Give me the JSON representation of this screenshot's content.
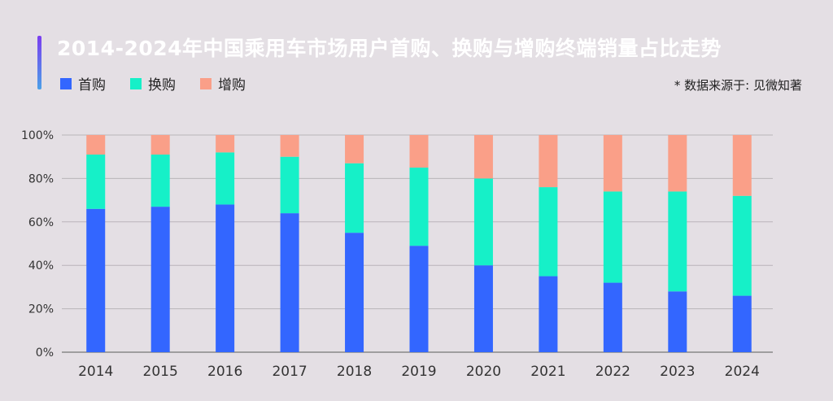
{
  "title": "2014-2024年中国乘用车市场用户首购、换购与增购终端销量占比走势",
  "source": "* 数据来源于: 见微知著",
  "colors": {
    "首购": "#3366ff",
    "换购": "#16f0c8",
    "增购": "#fa9f88"
  },
  "chart_data": {
    "type": "bar",
    "stacked": true,
    "title": "2014-2024年中国乘用车市场用户首购、换购与增购终端销量占比走势",
    "categories": [
      "2014",
      "2015",
      "2016",
      "2017",
      "2018",
      "2019",
      "2020",
      "2021",
      "2022",
      "2023",
      "2024"
    ],
    "series": [
      {
        "name": "首购",
        "values": [
          66,
          67,
          68,
          64,
          55,
          49,
          40,
          35,
          32,
          28,
          26
        ]
      },
      {
        "name": "换购",
        "values": [
          25,
          24,
          24,
          26,
          32,
          36,
          40,
          41,
          42,
          46,
          46
        ]
      },
      {
        "name": "增购",
        "values": [
          9,
          9,
          8,
          10,
          13,
          15,
          20,
          24,
          26,
          26,
          28
        ]
      }
    ],
    "ylim": [
      0,
      100
    ],
    "yticks": [
      "0%",
      "20%",
      "40%",
      "60%",
      "80%",
      "100%"
    ],
    "grid": true,
    "legend": "top-left"
  }
}
